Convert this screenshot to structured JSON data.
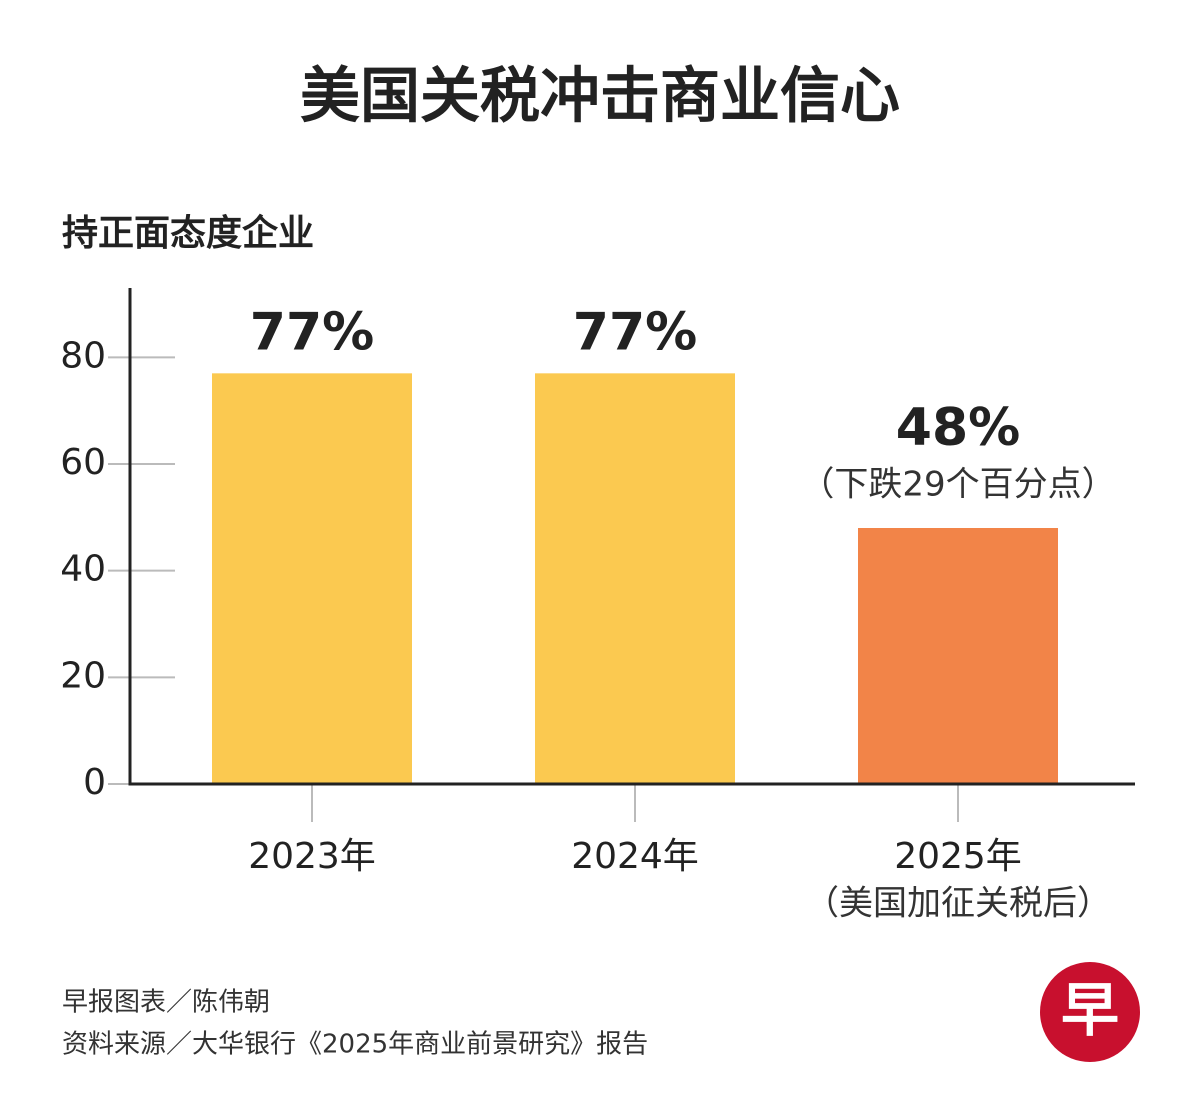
{
  "chart_data": {
    "type": "bar",
    "title": "美国关税冲击商业信心",
    "y_label": "持正面态度企业",
    "categories": [
      "2023年",
      "2024年",
      "2025年"
    ],
    "category_notes": [
      null,
      null,
      "（美国加征关税后）"
    ],
    "values": [
      77,
      77,
      48
    ],
    "value_labels": [
      "77%",
      "77%",
      "48%"
    ],
    "value_notes": [
      null,
      null,
      "（下跌29个百分点）"
    ],
    "colors": [
      "#fbc950",
      "#fbc950",
      "#f28448"
    ],
    "ylim": [
      0,
      93
    ],
    "yticks": [
      0,
      20,
      40,
      60,
      80
    ],
    "source": [
      "早报图表／陈伟朝",
      "资料来源／大华银行《2025年商业前景研究》报告"
    ],
    "logo": "早"
  }
}
